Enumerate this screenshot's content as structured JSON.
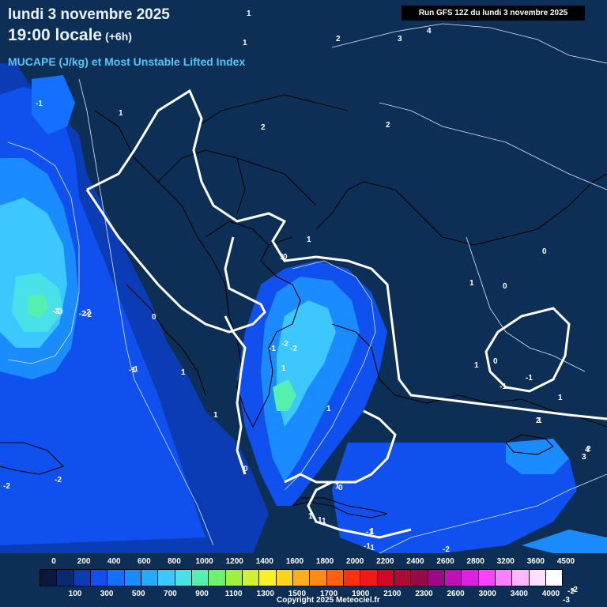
{
  "header": {
    "date": "lundi 3 novembre 2025",
    "time": "19:00 locale",
    "lead": "(+6h)",
    "parameter": "MUCAPE (J/kg) et Most Unstable Lifted Index",
    "run": "Run GFS 12Z du lundi 3 novembre 2025"
  },
  "legend": {
    "top_labels": [
      "0",
      "200",
      "400",
      "600",
      "800",
      "1000",
      "1200",
      "1400",
      "1600",
      "1800",
      "2000",
      "2200",
      "2400",
      "2600",
      "2800",
      "3200",
      "3600",
      "4500"
    ],
    "bottom_labels": [
      "100",
      "300",
      "500",
      "700",
      "900",
      "1100",
      "1300",
      "1500",
      "1700",
      "1900",
      "2100",
      "2300",
      "2600",
      "3000",
      "3400",
      "4000"
    ],
    "colors": [
      "#081840",
      "#0a2a6e",
      "#0b3cb5",
      "#1050ee",
      "#1470ff",
      "#1a8cff",
      "#25aaff",
      "#3cc8ff",
      "#4ae0e8",
      "#55f0b0",
      "#70f070",
      "#a0f040",
      "#d0f030",
      "#f8f028",
      "#ffd220",
      "#ffb018",
      "#ff8a14",
      "#ff6010",
      "#ff3010",
      "#f01818",
      "#d00828",
      "#b00838",
      "#980848",
      "#a00888",
      "#c010b8",
      "#e020e0",
      "#ff40ff",
      "#ff80ff",
      "#ffb8ff",
      "#ffe0ff",
      "#ffffff"
    ]
  },
  "contour_labels": [
    "1",
    "2",
    "3",
    "4",
    "2",
    "1",
    "-1",
    "1",
    "2",
    "-2",
    "-3",
    "-2",
    "0",
    "1",
    "1",
    "0",
    "-1",
    "-2",
    "1",
    "1",
    "1",
    "-1",
    "1",
    "0",
    "1",
    "1",
    "-1",
    "0",
    "1",
    "1",
    "0",
    "-2",
    "-1",
    "1",
    "1",
    "-2",
    "-2",
    "2",
    "3",
    "4",
    "-3",
    "-2",
    "0",
    "-1",
    "-2",
    "-1",
    "-1",
    "1",
    "-1",
    "2",
    "-2",
    "-3",
    "-2",
    "1",
    "0",
    "1"
  ],
  "copyright": "Copyright 2025 Meteociel.fr"
}
